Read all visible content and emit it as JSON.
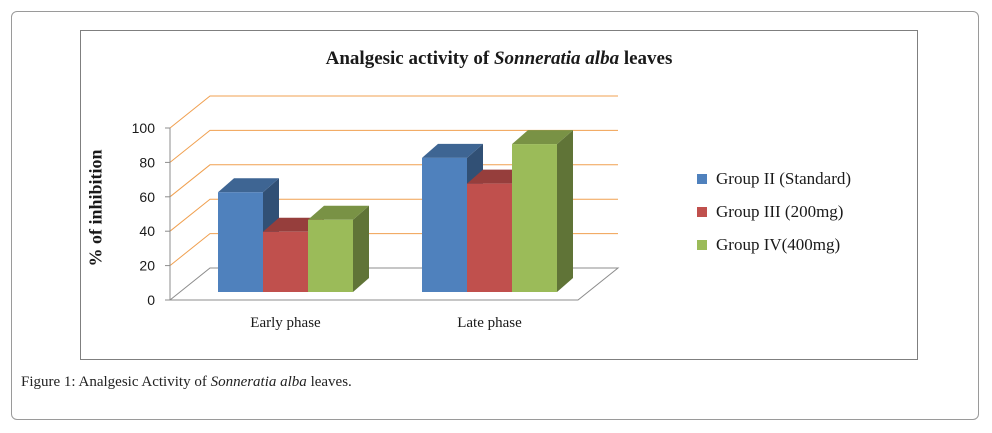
{
  "chart_data": {
    "type": "bar",
    "title_prefix": "Analgesic activity of ",
    "title_italic": "Sonneratia alba",
    "title_suffix": " leaves",
    "xlabel": "",
    "ylabel": "% of inhibition",
    "ylim": [
      0,
      100
    ],
    "yticks": [
      "0",
      "20",
      "40",
      "60",
      "80",
      "100"
    ],
    "categories": [
      "Early phase",
      "Late phase"
    ],
    "series": [
      {
        "name": "Group II (Standard)",
        "values": [
          58,
          78
        ],
        "color": "#4f81bd"
      },
      {
        "name": "Group III (200mg)",
        "values": [
          35,
          63
        ],
        "color": "#c0504d"
      },
      {
        "name": "Group IV(400mg)",
        "values": [
          42,
          86
        ],
        "color": "#9bbb59"
      }
    ],
    "chart_style": "3d-clustered-column",
    "gridlines": true,
    "gridline_color": "#f0a050",
    "legend_position": "right"
  },
  "caption": {
    "prefix": "Figure 1: Analgesic Activity of ",
    "italic": "Sonneratia alba",
    "suffix": " leaves."
  }
}
